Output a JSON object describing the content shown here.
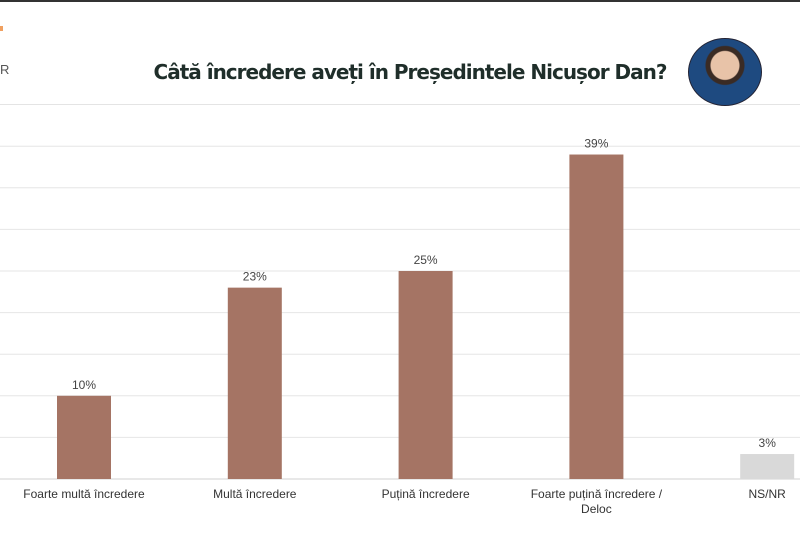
{
  "header": {
    "corner_text": "R",
    "title": "Câtă încredere aveți în Președintele Nicușor Dan?"
  },
  "chart_data": {
    "type": "bar",
    "title": "Câtă încredere aveți în Președintele Nicușor Dan?",
    "categories": [
      "Foarte multă încredere",
      "Multă încredere",
      "Puțină încredere",
      "Foarte puțină încredere / Deloc",
      "NS/NR"
    ],
    "values": [
      10,
      23,
      25,
      39,
      3
    ],
    "data_labels": [
      "10%",
      "23%",
      "25%",
      "39%",
      "3%"
    ],
    "colors": [
      "#a57464",
      "#a57464",
      "#a57464",
      "#a57464",
      "#d9d9d9"
    ],
    "ylim": [
      0,
      40
    ],
    "grid": true,
    "unit": "%"
  }
}
